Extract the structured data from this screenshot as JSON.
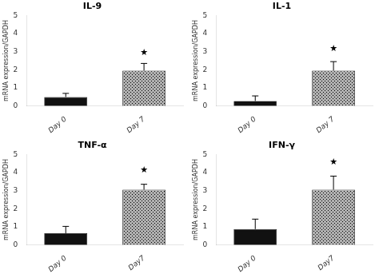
{
  "chart_data": [
    {
      "type": "bar",
      "title": "IL-9",
      "categories": [
        "Day 0",
        "Day 7"
      ],
      "values": [
        0.5,
        1.95
      ],
      "errors": [
        0.2,
        0.4
      ],
      "colors": [
        "#111111",
        "#b0b0b0"
      ],
      "ylabel": "mRNA expression/GAPDH",
      "ylim": [
        0,
        5
      ],
      "yticks": [
        0,
        1,
        2,
        3,
        4,
        5
      ],
      "grid": false,
      "annotations": [
        {
          "text": "★",
          "x": "Day 7",
          "y": 2.7
        }
      ]
    },
    {
      "type": "bar",
      "title": "IL-1",
      "categories": [
        "Day 0",
        "Day 7"
      ],
      "values": [
        0.28,
        1.95
      ],
      "errors": [
        0.28,
        0.5
      ],
      "colors": [
        "#111111",
        "#b0b0b0"
      ],
      "ylabel": "mRNA expression/GAPDH",
      "ylim": [
        0,
        5
      ],
      "yticks": [
        0,
        1,
        2,
        3,
        4,
        5
      ],
      "grid": false,
      "annotations": [
        {
          "text": "★",
          "x": "Day 7",
          "y": 2.9
        }
      ]
    },
    {
      "type": "bar",
      "title": "TNF-α",
      "categories": [
        "Day 0",
        "Day7"
      ],
      "values": [
        0.65,
        3.05
      ],
      "errors": [
        0.38,
        0.3
      ],
      "colors": [
        "#111111",
        "#b0b0b0"
      ],
      "ylabel": "mRNA expression/GAPDH",
      "ylim": [
        0,
        5
      ],
      "yticks": [
        0,
        1,
        2,
        3,
        4,
        5
      ],
      "grid": false,
      "annotations": [
        {
          "text": "★",
          "x": "Day7",
          "y": 3.9
        }
      ]
    },
    {
      "type": "bar",
      "title": "IFN-γ",
      "categories": [
        "Day 0",
        "Day7"
      ],
      "values": [
        0.88,
        3.05
      ],
      "errors": [
        0.55,
        0.75
      ],
      "colors": [
        "#111111",
        "#b0b0b0"
      ],
      "ylabel": "mRNA expression/GAPDH",
      "ylim": [
        0,
        5
      ],
      "yticks": [
        0,
        1,
        2,
        3,
        4,
        5
      ],
      "grid": false,
      "annotations": [
        {
          "text": "★",
          "x": "Day7",
          "y": 4.3
        }
      ]
    }
  ]
}
